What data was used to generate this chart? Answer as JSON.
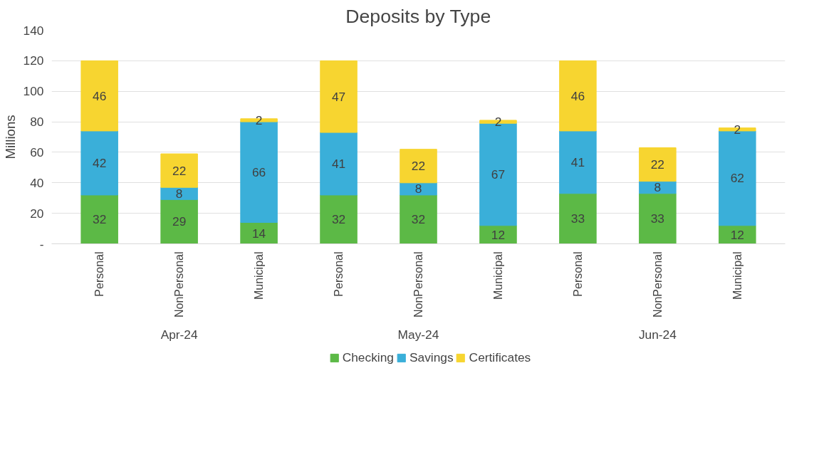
{
  "chart_data": {
    "type": "bar",
    "title": "Deposits by Type",
    "ylabel": "Millions",
    "stacked": true,
    "data_labels": true,
    "legend": "bottom",
    "grid": "y",
    "categories": [
      "Personal",
      "NonPersonal",
      "Municipal",
      "Personal",
      "NonPersonal",
      "Municipal",
      "Personal",
      "NonPersonal",
      "Municipal"
    ],
    "annotations": [
      "Apr-24",
      "May-24",
      "Jun-24"
    ],
    "series": [
      {
        "name": "Checking",
        "color": "#5cb946",
        "values": [
          32,
          29,
          14,
          32,
          32,
          12,
          33,
          33,
          12
        ]
      },
      {
        "name": "Savings",
        "color": "#3aafd9",
        "values": [
          42,
          8,
          66,
          41,
          8,
          67,
          41,
          8,
          62
        ]
      },
      {
        "name": "Certificates",
        "color": "#f7d530",
        "values": [
          46,
          22,
          2,
          47,
          22,
          2,
          46,
          22,
          2
        ]
      }
    ],
    "ylim": [
      0,
      140
    ],
    "yticks": [
      {
        "value": 0,
        "label": "-"
      },
      20,
      40,
      60,
      80,
      100,
      120,
      140
    ]
  }
}
